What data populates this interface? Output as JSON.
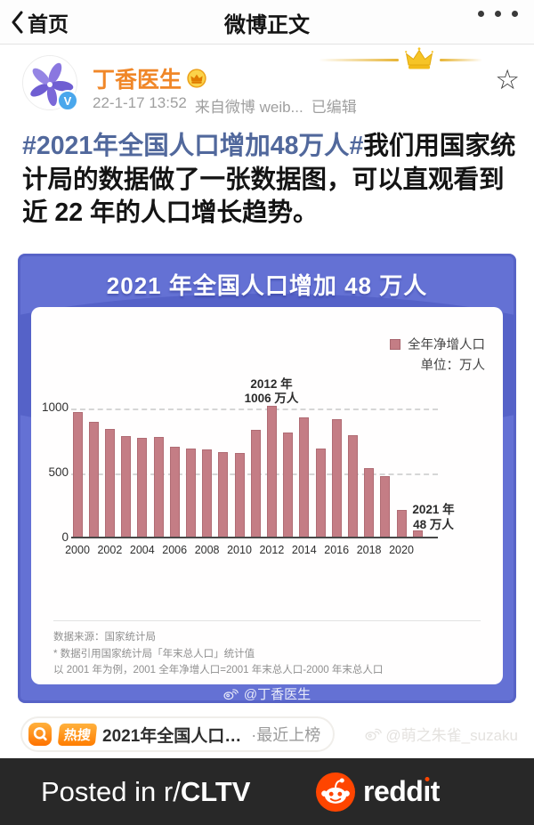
{
  "nav": {
    "back_label": "首页",
    "title": "微博正文"
  },
  "post": {
    "author": "丁香医生",
    "timestamp": "22-1-17 13:52",
    "source": "来自微博 weib...",
    "edited": "已编辑",
    "hashtag": "#2021年全国人口增加48万人#",
    "body": "我们用国家统计局的数据做了一张数据图，可以直观看到近 22 年的人口增长趋势。",
    "verified_letter": "V"
  },
  "chart": {
    "title": "2021 年全国人口增加 48 万人",
    "legend_label": "全年净增人口",
    "unit_label": "单位：万人",
    "annotation_2012": [
      "2012 年",
      "1006 万人"
    ],
    "annotation_2021": [
      "2021 年",
      "48 万人"
    ],
    "footnotes": [
      "数据来源：国家统计局",
      "* 数据引用国家统计局「年末总人口」统计值",
      "以 2001 年为例，2001 全年净增人口=2001 年末总人口-2000 年末总人口"
    ],
    "watermark": "@丁香医生"
  },
  "chart_data": {
    "type": "bar",
    "title": "2021 年全国人口增加 48 万人",
    "x": [
      2000,
      2001,
      2002,
      2003,
      2004,
      2005,
      2006,
      2007,
      2008,
      2009,
      2010,
      2011,
      2012,
      2013,
      2014,
      2015,
      2016,
      2017,
      2018,
      2019,
      2020,
      2021
    ],
    "values": [
      957,
      884,
      826,
      774,
      761,
      768,
      692,
      681,
      673,
      648,
      641,
      825,
      1006,
      804,
      920,
      680,
      906,
      779,
      530,
      467,
      204,
      48
    ],
    "series_name": "全年净增人口",
    "ylabel": "万人",
    "ylim": [
      0,
      1000
    ],
    "yticks": [
      0,
      500,
      1000
    ],
    "xticks": [
      2000,
      2002,
      2004,
      2006,
      2008,
      2010,
      2012,
      2014,
      2016,
      2018,
      2020
    ],
    "grid": "dashed horizontal at 500 and 1000",
    "legend_position": "top-right",
    "bar_color": "#c47d85"
  },
  "hot_search": {
    "tag": "热搜",
    "text": "2021年全国人口…",
    "suffix": "·最近上榜"
  },
  "photo_watermark": "@萌之朱雀_suzaku",
  "footer": {
    "posted_in": "Posted in r/",
    "subreddit": "CLTV",
    "brand": "reddit"
  },
  "colors": {
    "author_orange": "#f08728",
    "hashtag_blue": "#51689c",
    "chart_background": "#6471d4",
    "bar_color": "#c47d85",
    "hot_orange": "#ff7d00",
    "reddit_orange": "#ff4500",
    "banner_background": "#282828"
  }
}
